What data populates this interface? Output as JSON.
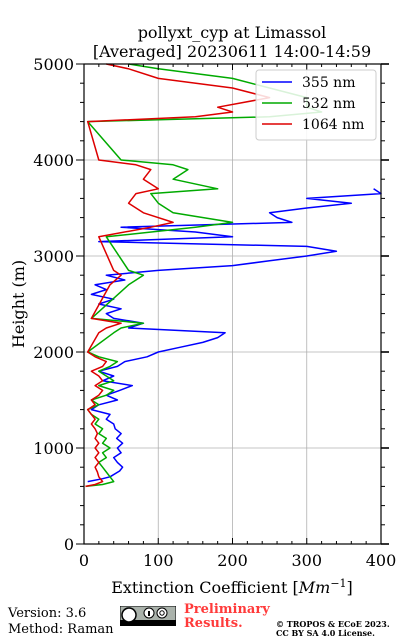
{
  "chart_data": {
    "type": "line",
    "title": "pollyxt_cyp at Limassol",
    "subtitle": "[Averaged] 20230611 14:00-14:59",
    "xlabel_prefix": "Extinction Coefficient [",
    "xlabel_unit": "Mm",
    "xlabel_exp": "−1",
    "xlabel_suffix": "]",
    "ylabel": "Height (m)",
    "xlim": [
      0,
      400
    ],
    "ylim": [
      0,
      5000
    ],
    "xticks": [
      0,
      100,
      200,
      300,
      400
    ],
    "yticks": [
      0,
      1000,
      2000,
      3000,
      4000,
      5000
    ],
    "grid": true,
    "legend": "top-right",
    "series": [
      {
        "name": "355 nm",
        "color": "#0000ff",
        "points": [
          [
            5,
            650
          ],
          [
            25,
            680
          ],
          [
            35,
            700
          ],
          [
            48,
            760
          ],
          [
            52,
            800
          ],
          [
            45,
            850
          ],
          [
            40,
            900
          ],
          [
            50,
            950
          ],
          [
            45,
            1000
          ],
          [
            52,
            1050
          ],
          [
            44,
            1100
          ],
          [
            50,
            1150
          ],
          [
            42,
            1200
          ],
          [
            40,
            1250
          ],
          [
            30,
            1300
          ],
          [
            35,
            1350
          ],
          [
            10,
            1400
          ],
          [
            20,
            1450
          ],
          [
            45,
            1500
          ],
          [
            30,
            1550
          ],
          [
            48,
            1600
          ],
          [
            65,
            1650
          ],
          [
            25,
            1700
          ],
          [
            40,
            1750
          ],
          [
            20,
            1800
          ],
          [
            45,
            1850
          ],
          [
            55,
            1900
          ],
          [
            85,
            1950
          ],
          [
            100,
            2000
          ],
          [
            130,
            2050
          ],
          [
            160,
            2100
          ],
          [
            180,
            2150
          ],
          [
            190,
            2200
          ],
          [
            60,
            2250
          ],
          [
            80,
            2300
          ],
          [
            40,
            2350
          ],
          [
            30,
            2400
          ],
          [
            50,
            2450
          ],
          [
            20,
            2500
          ],
          [
            40,
            2550
          ],
          [
            10,
            2600
          ],
          [
            30,
            2650
          ],
          [
            15,
            2700
          ],
          [
            55,
            2750
          ],
          [
            30,
            2800
          ],
          [
            100,
            2850
          ],
          [
            200,
            2900
          ],
          [
            250,
            2950
          ],
          [
            300,
            3000
          ],
          [
            340,
            3050
          ],
          [
            300,
            3100
          ],
          [
            20,
            3150
          ],
          [
            200,
            3200
          ],
          [
            150,
            3250
          ],
          [
            50,
            3300
          ],
          [
            280,
            3350
          ],
          [
            260,
            3400
          ],
          [
            250,
            3450
          ],
          [
            300,
            3500
          ],
          [
            360,
            3550
          ],
          [
            300,
            3600
          ],
          [
            400,
            3650
          ],
          [
            390,
            3700
          ]
        ]
      },
      {
        "name": "532 nm",
        "color": "#00aa00",
        "points": [
          [
            2,
            600
          ],
          [
            25,
            620
          ],
          [
            40,
            650
          ],
          [
            35,
            700
          ],
          [
            30,
            750
          ],
          [
            25,
            800
          ],
          [
            20,
            850
          ],
          [
            30,
            900
          ],
          [
            25,
            950
          ],
          [
            35,
            1000
          ],
          [
            25,
            1050
          ],
          [
            30,
            1100
          ],
          [
            20,
            1150
          ],
          [
            25,
            1200
          ],
          [
            15,
            1250
          ],
          [
            20,
            1300
          ],
          [
            10,
            1350
          ],
          [
            5,
            1400
          ],
          [
            20,
            1450
          ],
          [
            10,
            1500
          ],
          [
            30,
            1550
          ],
          [
            40,
            1600
          ],
          [
            20,
            1650
          ],
          [
            40,
            1700
          ],
          [
            30,
            1750
          ],
          [
            20,
            1800
          ],
          [
            35,
            1850
          ],
          [
            45,
            1900
          ],
          [
            20,
            1950
          ],
          [
            5,
            2000
          ],
          [
            40,
            2200
          ],
          [
            50,
            2250
          ],
          [
            80,
            2300
          ],
          [
            10,
            2350
          ],
          [
            60,
            2700
          ],
          [
            80,
            2800
          ],
          [
            60,
            2850
          ],
          [
            30,
            3200
          ],
          [
            150,
            3300
          ],
          [
            200,
            3350
          ],
          [
            120,
            3450
          ],
          [
            100,
            3550
          ],
          [
            90,
            3650
          ],
          [
            180,
            3700
          ],
          [
            120,
            3800
          ],
          [
            140,
            3900
          ],
          [
            120,
            3950
          ],
          [
            50,
            4000
          ],
          [
            5,
            4400
          ],
          [
            250,
            4450
          ],
          [
            320,
            4500
          ],
          [
            300,
            4550
          ],
          [
            300,
            4650
          ],
          [
            250,
            4750
          ],
          [
            200,
            4850
          ],
          [
            100,
            4950
          ],
          [
            60,
            5000
          ]
        ]
      },
      {
        "name": "1064 nm",
        "color": "#dd0000",
        "points": [
          [
            2,
            600
          ],
          [
            15,
            620
          ],
          [
            25,
            650
          ],
          [
            20,
            700
          ],
          [
            18,
            750
          ],
          [
            15,
            800
          ],
          [
            20,
            850
          ],
          [
            15,
            900
          ],
          [
            20,
            950
          ],
          [
            15,
            1000
          ],
          [
            20,
            1050
          ],
          [
            15,
            1100
          ],
          [
            18,
            1150
          ],
          [
            15,
            1200
          ],
          [
            10,
            1250
          ],
          [
            15,
            1300
          ],
          [
            10,
            1350
          ],
          [
            5,
            1400
          ],
          [
            15,
            1450
          ],
          [
            10,
            1500
          ],
          [
            20,
            1550
          ],
          [
            25,
            1600
          ],
          [
            15,
            1650
          ],
          [
            25,
            1700
          ],
          [
            20,
            1750
          ],
          [
            10,
            1800
          ],
          [
            25,
            1850
          ],
          [
            30,
            1900
          ],
          [
            15,
            1950
          ],
          [
            5,
            2000
          ],
          [
            20,
            2200
          ],
          [
            30,
            2250
          ],
          [
            50,
            2300
          ],
          [
            10,
            2350
          ],
          [
            35,
            2700
          ],
          [
            50,
            2800
          ],
          [
            40,
            2850
          ],
          [
            20,
            3200
          ],
          [
            90,
            3300
          ],
          [
            120,
            3350
          ],
          [
            80,
            3450
          ],
          [
            60,
            3550
          ],
          [
            70,
            3650
          ],
          [
            100,
            3700
          ],
          [
            80,
            3800
          ],
          [
            90,
            3900
          ],
          [
            70,
            3950
          ],
          [
            20,
            4000
          ],
          [
            5,
            4400
          ],
          [
            150,
            4450
          ],
          [
            200,
            4500
          ],
          [
            180,
            4550
          ],
          [
            250,
            4650
          ],
          [
            200,
            4750
          ],
          [
            100,
            4850
          ],
          [
            60,
            4950
          ],
          [
            30,
            5000
          ]
        ]
      }
    ]
  },
  "footer": {
    "version": "Version: 3.6",
    "method": "Method: Raman",
    "preliminary_line1": "Preliminary",
    "preliminary_line2": "Results.",
    "copyright_line1": "© TROPOS & ECoE 2023.",
    "copyright_line2": "CC BY SA 4.0 License."
  }
}
